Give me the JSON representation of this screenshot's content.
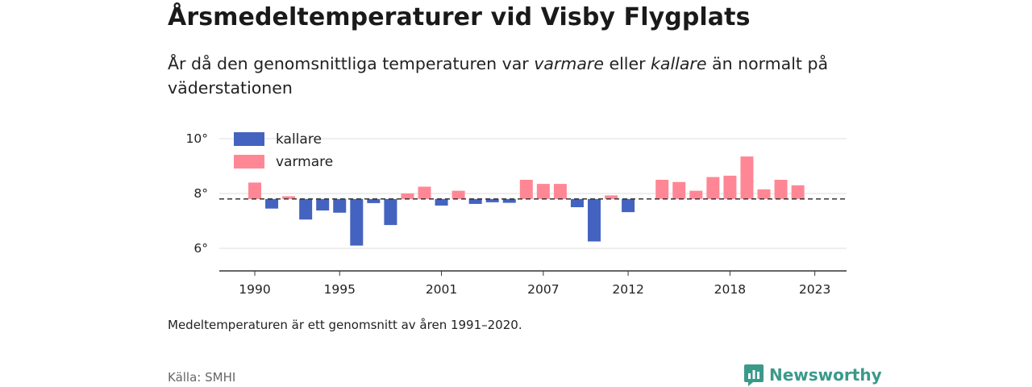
{
  "header": {
    "title": "Årsmedeltemperaturer vid Visby Flygplats",
    "subtitle_pre": "År då den genomsnittliga temperaturen var ",
    "subtitle_warm": "varmare",
    "subtitle_mid": " eller ",
    "subtitle_cold": "kallare",
    "subtitle_post": " än normalt på väderstationen"
  },
  "footnote": "Medeltemperaturen är ett genomsnitt av åren 1991–2020.",
  "source": "Källa: SMHI",
  "brand": {
    "name": "Newsworthy",
    "icon": "newsworthy-logo-icon",
    "color": "#3a9a8a"
  },
  "chart_data": {
    "type": "bar",
    "baseline": 7.8,
    "ylim": [
      5.2,
      10.7
    ],
    "yticks": [
      6,
      8,
      10
    ],
    "ytick_labels": [
      "6°",
      "8°",
      "10°"
    ],
    "xticks": [
      1990,
      1995,
      2001,
      2007,
      2012,
      2018,
      2023
    ],
    "xtick_labels": [
      "1990",
      "1995",
      "2001",
      "2007",
      "2012",
      "2018",
      "2023"
    ],
    "colors": {
      "kallare": "#4463c0",
      "varmare": "#ff8795"
    },
    "legend": [
      {
        "key": "kallare",
        "label": "kallare"
      },
      {
        "key": "varmare",
        "label": "varmare"
      }
    ],
    "legend_position": "top-left",
    "grid": true,
    "x": [
      1990,
      1991,
      1992,
      1993,
      1994,
      1995,
      1996,
      1997,
      1998,
      1999,
      2000,
      2001,
      2002,
      2003,
      2004,
      2005,
      2006,
      2007,
      2008,
      2009,
      2010,
      2011,
      2012,
      2013,
      2014,
      2015,
      2016,
      2017,
      2018,
      2019,
      2020,
      2021,
      2022,
      2023
    ],
    "values": [
      8.4,
      7.45,
      7.9,
      7.05,
      7.38,
      7.3,
      6.1,
      7.65,
      6.85,
      8.0,
      8.25,
      7.56,
      8.1,
      7.62,
      7.68,
      7.66,
      8.5,
      8.35,
      8.35,
      7.5,
      6.25,
      7.93,
      7.32,
      7.8,
      8.5,
      8.42,
      8.1,
      8.6,
      8.65,
      9.35,
      8.15,
      8.5,
      8.3,
      null
    ]
  }
}
